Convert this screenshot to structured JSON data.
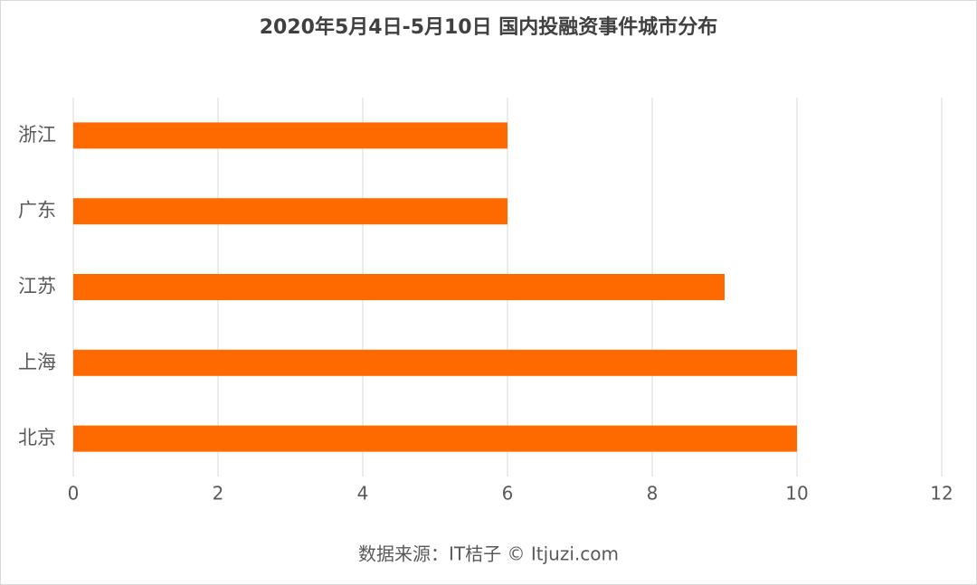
{
  "chart_data": {
    "type": "bar",
    "horizontal": true,
    "title": "2020年5月4日-5月10日 国内投融资事件城市分布",
    "categories": [
      "浙江",
      "广东",
      "江苏",
      "上海",
      "北京"
    ],
    "values": [
      6,
      6,
      9,
      10,
      10
    ],
    "color": "#ff6a00",
    "xlim": [
      0,
      12
    ],
    "xticks": [
      0,
      2,
      4,
      6,
      8,
      10,
      12
    ],
    "grid": true,
    "footnote": "数据来源：IT桔子 © Itjuzi.com"
  }
}
